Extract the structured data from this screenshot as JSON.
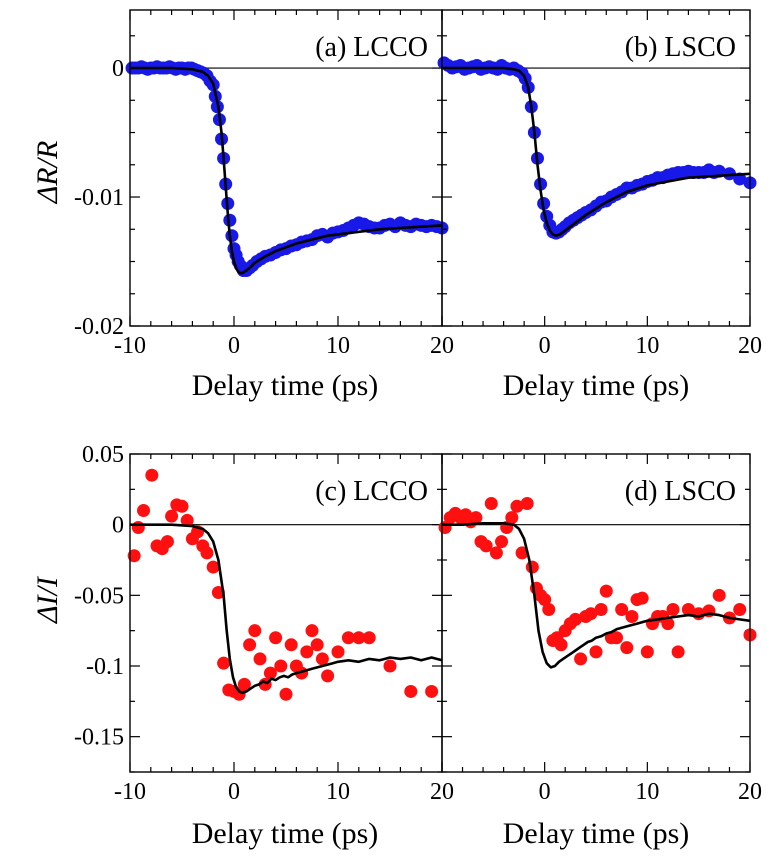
{
  "chart_data": [
    {
      "type": "scatter",
      "panel": "a",
      "panel_label": "(a) LCCO",
      "xlabel": "Delay time (ps)",
      "ylabel": "ΔR/R",
      "xlim": [
        -10,
        20
      ],
      "ylim": [
        -0.02,
        0.0045
      ],
      "xticks": [
        -10,
        0,
        10,
        20
      ],
      "yticks": [
        0,
        -0.01,
        -0.02
      ],
      "ytick_labels": [
        "0",
        "-0.01",
        "-0.02"
      ],
      "marker_color": "#1818e8",
      "line_color": "#000000",
      "series": [
        {
          "kind": "points",
          "x": [
            -9.8,
            -9.5,
            -9.2,
            -8.9,
            -8.6,
            -8.3,
            -8.0,
            -7.7,
            -7.4,
            -7.1,
            -6.8,
            -6.5,
            -6.2,
            -5.9,
            -5.6,
            -5.3,
            -5.0,
            -4.7,
            -4.4,
            -4.1,
            -3.8,
            -3.5,
            -3.2,
            -2.9,
            -2.6,
            -2.3,
            -2.0,
            -1.8,
            -1.6,
            -1.4,
            -1.2,
            -1.0,
            -0.8,
            -0.6,
            -0.4,
            -0.2,
            0.0,
            0.2,
            0.4,
            0.6,
            0.9,
            1.2,
            1.5,
            1.8,
            2.2,
            2.6,
            3.0,
            3.5,
            4.0,
            4.5,
            5.0,
            5.5,
            6.0,
            6.5,
            7.0,
            7.5,
            8.0,
            8.5,
            9.0,
            9.5,
            10.0,
            10.5,
            11.0,
            11.5,
            12.0,
            12.5,
            13.0,
            13.5,
            14.0,
            14.5,
            15.0,
            15.5,
            16.0,
            16.5,
            17.0,
            17.5,
            18.0,
            18.5,
            19.0,
            19.5,
            20.0
          ],
          "y": [
            0.0,
            0.0,
            0.0,
            0.0001,
            0.0,
            -0.0001,
            0.0,
            0.0,
            0.0001,
            0.0,
            0.0,
            0.0,
            0.0001,
            0.0,
            -0.0001,
            0.0,
            0.0,
            -0.0001,
            0.0,
            0.0,
            -0.0001,
            -0.0002,
            -0.0003,
            -0.0004,
            -0.0006,
            -0.001,
            -0.0013,
            -0.0022,
            -0.003,
            -0.004,
            -0.0055,
            -0.007,
            -0.009,
            -0.0105,
            -0.0118,
            -0.013,
            -0.014,
            -0.0145,
            -0.015,
            -0.0153,
            -0.0157,
            -0.0157,
            -0.0155,
            -0.0153,
            -0.015,
            -0.0148,
            -0.0146,
            -0.0145,
            -0.0143,
            -0.0141,
            -0.014,
            -0.0138,
            -0.0137,
            -0.0135,
            -0.0134,
            -0.0133,
            -0.013,
            -0.0129,
            -0.0131,
            -0.0128,
            -0.0127,
            -0.0126,
            -0.0124,
            -0.0122,
            -0.012,
            -0.0121,
            -0.0123,
            -0.0124,
            -0.0124,
            -0.0122,
            -0.0121,
            -0.0123,
            -0.012,
            -0.0122,
            -0.0123,
            -0.0121,
            -0.0122,
            -0.0123,
            -0.0122,
            -0.0123,
            -0.0124
          ]
        },
        {
          "kind": "fit",
          "x": [
            -10,
            -8,
            -6,
            -4,
            -3,
            -2.5,
            -2,
            -1.5,
            -1.2,
            -1.0,
            -0.8,
            -0.6,
            -0.4,
            -0.2,
            0.0,
            0.2,
            0.4,
            0.6,
            0.8,
            1.0,
            1.2,
            1.5,
            2,
            3,
            4,
            5,
            6,
            7,
            8,
            9,
            10,
            12,
            14,
            16,
            18,
            20
          ],
          "y": [
            0.0,
            0.0,
            0.0,
            -0.0001,
            -0.0003,
            -0.0006,
            -0.0012,
            -0.003,
            -0.005,
            -0.007,
            -0.0092,
            -0.0113,
            -0.013,
            -0.0142,
            -0.015,
            -0.0155,
            -0.0158,
            -0.0159,
            -0.0159,
            -0.0158,
            -0.0157,
            -0.0155,
            -0.0151,
            -0.0146,
            -0.0142,
            -0.0139,
            -0.0136,
            -0.0134,
            -0.0132,
            -0.013,
            -0.0129,
            -0.0127,
            -0.0125,
            -0.0124,
            -0.0123,
            -0.0122
          ]
        }
      ]
    },
    {
      "type": "scatter",
      "panel": "b",
      "panel_label": "(b) LSCO",
      "xlabel": "Delay time (ps)",
      "ylabel": "",
      "xlim": [
        -10,
        20
      ],
      "ylim": [
        -0.02,
        0.0045
      ],
      "xticks": [
        -10,
        0,
        10,
        20
      ],
      "xtick_labels": [
        "",
        "0",
        "10",
        "20"
      ],
      "marker_color": "#1818e8",
      "line_color": "#000000",
      "series": [
        {
          "kind": "points",
          "x": [
            -9.8,
            -9.4,
            -9.0,
            -8.6,
            -8.2,
            -7.8,
            -7.4,
            -7.0,
            -6.6,
            -6.2,
            -5.8,
            -5.4,
            -5.0,
            -4.6,
            -4.2,
            -3.8,
            -3.4,
            -3.0,
            -2.6,
            -2.2,
            -1.9,
            -1.6,
            -1.3,
            -1.0,
            -0.7,
            -0.4,
            -0.1,
            0.2,
            0.5,
            0.8,
            1.1,
            1.4,
            1.7,
            2.0,
            2.4,
            2.8,
            3.2,
            3.6,
            4.0,
            4.5,
            5.0,
            5.5,
            6.0,
            6.5,
            7.0,
            7.5,
            8.0,
            8.5,
            9.0,
            9.5,
            10.0,
            10.5,
            11.0,
            11.5,
            12.0,
            12.5,
            13.0,
            13.5,
            14.0,
            14.5,
            15.0,
            15.5,
            16.0,
            16.5,
            17.0,
            18.0,
            19.0,
            20.0
          ],
          "y": [
            0.0004,
            0.0002,
            0.0,
            0.0001,
            0.0002,
            -0.0001,
            0.0,
            0.0001,
            0.0002,
            -0.0001,
            0.0,
            0.0001,
            0.0,
            -0.0001,
            0.0002,
            0.0,
            -0.0001,
            0.0,
            -0.0002,
            -0.0004,
            -0.0008,
            -0.0015,
            -0.003,
            -0.005,
            -0.007,
            -0.009,
            -0.0105,
            -0.0115,
            -0.0122,
            -0.0127,
            -0.0128,
            -0.0127,
            -0.0125,
            -0.0123,
            -0.012,
            -0.0118,
            -0.0116,
            -0.0114,
            -0.0112,
            -0.011,
            -0.0107,
            -0.0104,
            -0.0103,
            -0.01,
            -0.0098,
            -0.0096,
            -0.0093,
            -0.0093,
            -0.0091,
            -0.009,
            -0.0088,
            -0.0087,
            -0.0085,
            -0.0085,
            -0.0083,
            -0.0082,
            -0.0081,
            -0.0081,
            -0.008,
            -0.0081,
            -0.0081,
            -0.0081,
            -0.0079,
            -0.0081,
            -0.008,
            -0.0082,
            -0.0086,
            -0.0089
          ]
        },
        {
          "kind": "fit",
          "x": [
            -10,
            -8,
            -6,
            -4,
            -3,
            -2.5,
            -2,
            -1.6,
            -1.3,
            -1.0,
            -0.7,
            -0.4,
            -0.1,
            0.2,
            0.5,
            0.8,
            1.1,
            1.5,
            2,
            3,
            4,
            5,
            6,
            7,
            8,
            10,
            12,
            14,
            16,
            18,
            20
          ],
          "y": [
            0.0,
            0.0,
            0.0,
            0.0,
            -0.0001,
            -0.0002,
            -0.0006,
            -0.0015,
            -0.003,
            -0.005,
            -0.0075,
            -0.0095,
            -0.011,
            -0.012,
            -0.0126,
            -0.0129,
            -0.013,
            -0.0129,
            -0.0126,
            -0.012,
            -0.0114,
            -0.0109,
            -0.0104,
            -0.01,
            -0.0096,
            -0.0091,
            -0.0088,
            -0.0085,
            -0.0084,
            -0.0083,
            -0.0082
          ]
        }
      ]
    },
    {
      "type": "scatter",
      "panel": "c",
      "panel_label": "(c) LCCO",
      "xlabel": "Delay time (ps)",
      "ylabel": "ΔI/I",
      "xlim": [
        -10,
        20
      ],
      "ylim": [
        -0.175,
        0.05
      ],
      "xticks": [
        -10,
        0,
        10,
        20
      ],
      "yticks": [
        0.05,
        0,
        -0.05,
        -0.1,
        -0.15
      ],
      "ytick_labels": [
        "0.05",
        "0",
        "-0.05",
        "-0.1",
        "-0.15"
      ],
      "marker_color": "#ff1010",
      "line_color": "#000000",
      "series": [
        {
          "kind": "points",
          "x": [
            -9.6,
            -9.2,
            -8.7,
            -7.9,
            -7.4,
            -6.9,
            -6.4,
            -6.0,
            -5.5,
            -5.0,
            -4.5,
            -4.0,
            -3.5,
            -3.0,
            -2.6,
            -2.0,
            -1.5,
            -1.0,
            -0.5,
            0.0,
            0.5,
            1.0,
            1.5,
            2.0,
            2.5,
            3.0,
            3.5,
            4.0,
            4.5,
            5.0,
            5.5,
            6.0,
            6.5,
            7.0,
            7.5,
            8.0,
            8.5,
            9.0,
            10.0,
            11.0,
            12.0,
            13.0,
            15.0,
            17.0,
            19.0
          ],
          "y": [
            -0.022,
            -0.002,
            0.01,
            0.035,
            -0.015,
            -0.017,
            -0.012,
            0.006,
            0.014,
            0.013,
            0.003,
            -0.01,
            -0.005,
            -0.015,
            -0.02,
            -0.03,
            -0.048,
            -0.098,
            -0.117,
            -0.118,
            -0.12,
            -0.113,
            -0.085,
            -0.075,
            -0.095,
            -0.113,
            -0.105,
            -0.08,
            -0.1,
            -0.12,
            -0.085,
            -0.1,
            -0.105,
            -0.09,
            -0.075,
            -0.085,
            -0.095,
            -0.107,
            -0.09,
            -0.08,
            -0.08,
            -0.08,
            -0.1,
            -0.118,
            -0.118
          ]
        },
        {
          "kind": "fit",
          "x": [
            -10,
            -8,
            -6,
            -4,
            -3,
            -2.5,
            -2,
            -1.5,
            -1.0,
            -0.7,
            -0.4,
            -0.1,
            0.2,
            0.5,
            0.8,
            1.2,
            1.6,
            2.0,
            2.4,
            2.8,
            3.2,
            3.6,
            4.0,
            4.4,
            4.8,
            5.2,
            5.6,
            6.0,
            6.5,
            7.0,
            7.5,
            8.0,
            8.5,
            9.0,
            9.5,
            10,
            11,
            12,
            13,
            14,
            15,
            16,
            17,
            18,
            19,
            20
          ],
          "y": [
            0.0,
            0.0,
            0.0,
            -0.001,
            -0.003,
            -0.006,
            -0.012,
            -0.025,
            -0.05,
            -0.075,
            -0.095,
            -0.108,
            -0.115,
            -0.118,
            -0.119,
            -0.118,
            -0.116,
            -0.114,
            -0.113,
            -0.111,
            -0.112,
            -0.109,
            -0.11,
            -0.108,
            -0.107,
            -0.108,
            -0.106,
            -0.105,
            -0.104,
            -0.103,
            -0.102,
            -0.101,
            -0.1,
            -0.099,
            -0.098,
            -0.097,
            -0.096,
            -0.097,
            -0.095,
            -0.096,
            -0.094,
            -0.095,
            -0.094,
            -0.096,
            -0.094,
            -0.096
          ]
        }
      ]
    },
    {
      "type": "scatter",
      "panel": "d",
      "panel_label": "(d) LSCO",
      "xlabel": "Delay time (ps)",
      "ylabel": "",
      "xlim": [
        -10,
        20
      ],
      "ylim": [
        -0.175,
        0.05
      ],
      "xticks": [
        -10,
        0,
        10,
        20
      ],
      "xtick_labels": [
        "",
        "0",
        "10",
        "20"
      ],
      "marker_color": "#ff1010",
      "line_color": "#000000",
      "series": [
        {
          "kind": "points",
          "x": [
            -9.7,
            -9.2,
            -8.7,
            -8.2,
            -7.7,
            -7.2,
            -6.7,
            -6.2,
            -5.7,
            -5.2,
            -4.7,
            -4.2,
            -3.7,
            -3.2,
            -2.7,
            -2.2,
            -1.7,
            -1.2,
            -0.8,
            -0.4,
            0.0,
            0.4,
            0.8,
            1.2,
            1.6,
            2.0,
            2.5,
            3.0,
            3.5,
            4.0,
            4.5,
            5.0,
            5.5,
            6.0,
            6.5,
            7.0,
            7.5,
            8.0,
            8.5,
            9.0,
            9.5,
            10.0,
            10.5,
            11.0,
            11.5,
            12.0,
            12.5,
            13.0,
            14.0,
            15.0,
            16.0,
            17.0,
            18.0,
            19.0,
            20.0
          ],
          "y": [
            -0.002,
            0.005,
            0.008,
            0.005,
            0.007,
            0.002,
            0.005,
            -0.012,
            -0.015,
            0.015,
            -0.02,
            -0.012,
            -0.002,
            0.005,
            0.013,
            -0.02,
            0.015,
            -0.03,
            -0.045,
            -0.05,
            -0.053,
            -0.06,
            -0.082,
            -0.08,
            -0.085,
            -0.075,
            -0.07,
            -0.067,
            -0.095,
            -0.065,
            -0.063,
            -0.09,
            -0.06,
            -0.047,
            -0.08,
            -0.08,
            -0.06,
            -0.087,
            -0.065,
            -0.053,
            -0.052,
            -0.09,
            -0.07,
            -0.065,
            -0.065,
            -0.07,
            -0.06,
            -0.09,
            -0.06,
            -0.063,
            -0.061,
            -0.05,
            -0.066,
            -0.06,
            -0.078
          ]
        },
        {
          "kind": "fit",
          "x": [
            -10,
            -8,
            -6,
            -4,
            -3,
            -2.5,
            -2,
            -1.5,
            -1.0,
            -0.6,
            -0.2,
            0.2,
            0.6,
            1.0,
            1.4,
            1.8,
            2.2,
            2.6,
            3.0,
            3.4,
            3.8,
            4.2,
            4.6,
            5.0,
            5.5,
            6.0,
            6.5,
            7.0,
            7.5,
            8.0,
            8.5,
            9.0,
            10,
            11,
            12,
            13,
            14,
            15,
            16,
            17,
            18,
            19,
            20
          ],
          "y": [
            0.0,
            0.0,
            0.001,
            0.001,
            0.0,
            -0.003,
            -0.01,
            -0.025,
            -0.05,
            -0.075,
            -0.09,
            -0.098,
            -0.101,
            -0.1,
            -0.097,
            -0.095,
            -0.093,
            -0.091,
            -0.089,
            -0.087,
            -0.085,
            -0.083,
            -0.082,
            -0.08,
            -0.079,
            -0.077,
            -0.076,
            -0.074,
            -0.073,
            -0.072,
            -0.071,
            -0.07,
            -0.068,
            -0.067,
            -0.066,
            -0.065,
            -0.064,
            -0.065,
            -0.063,
            -0.064,
            -0.066,
            -0.067,
            -0.068
          ]
        }
      ]
    }
  ]
}
